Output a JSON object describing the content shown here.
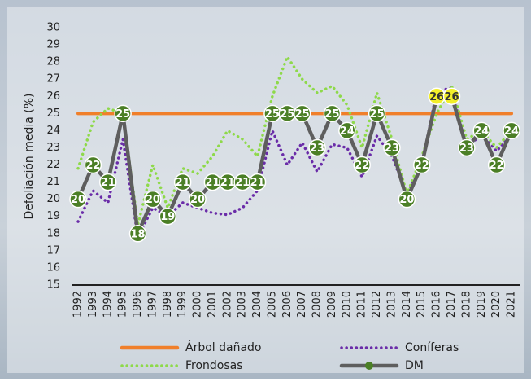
{
  "chart_data": {
    "type": "line",
    "y_label": "Defoliación media (%)",
    "categories": [
      "1992",
      "1993",
      "1994",
      "1995",
      "1996",
      "1997",
      "1998",
      "1999",
      "2000",
      "2001",
      "2002",
      "2003",
      "2004",
      "2005",
      "2006",
      "2007",
      "2008",
      "2009",
      "2010",
      "2011",
      "2012",
      "2013",
      "2014",
      "2015",
      "2016",
      "2017",
      "2018",
      "2019",
      "2020",
      "2021"
    ],
    "ylim": [
      15,
      30
    ],
    "yticks": [
      15,
      16,
      17,
      18,
      19,
      20,
      21,
      22,
      23,
      24,
      25,
      26,
      27,
      28,
      29,
      30
    ],
    "series": [
      {
        "name": "Árbol dañado",
        "color": "#f07f2a",
        "style": "solid",
        "values": [
          25,
          25,
          25,
          25,
          25,
          25,
          25,
          25,
          25,
          25,
          25,
          25,
          25,
          25,
          25,
          25,
          25,
          25,
          25,
          25,
          25,
          25,
          25,
          25,
          25,
          25,
          25,
          25,
          25,
          25
        ]
      },
      {
        "name": "Coníferas",
        "color": "#6a2ca8",
        "style": "dotted",
        "values": [
          18.7,
          20.5,
          19.8,
          23.5,
          17.8,
          19.5,
          19,
          19.8,
          19.5,
          19.2,
          19.1,
          19.5,
          20.5,
          24,
          22,
          23.3,
          21.6,
          23.2,
          23,
          21.3,
          23.7,
          22.5,
          20.3,
          22,
          26.3,
          26.5,
          23,
          23.8,
          22.8,
          23.8
        ]
      },
      {
        "name": "Frondosas",
        "color": "#8ed94a",
        "style": "dotted",
        "values": [
          21.8,
          24.5,
          25.3,
          25,
          18.5,
          22,
          19.5,
          21.8,
          21.5,
          22.5,
          24,
          23.5,
          22.5,
          26,
          28.3,
          27,
          26.2,
          26.6,
          25.5,
          23,
          26.2,
          23.5,
          20.3,
          22.5,
          25,
          26.6,
          23.5,
          24,
          23,
          24
        ]
      },
      {
        "name": "DM",
        "color": "#5e5e5e",
        "style": "markers",
        "marker_color": "#4b7f26",
        "point_colors": [
          "#4b7f26",
          "#4b7f26",
          "#4b7f26",
          "#4b7f26",
          "#4b7f26",
          "#4b7f26",
          "#4b7f26",
          "#4b7f26",
          "#4b7f26",
          "#4b7f26",
          "#4b7f26",
          "#4b7f26",
          "#4b7f26",
          "#4b7f26",
          "#4b7f26",
          "#4b7f26",
          "#4b7f26",
          "#4b7f26",
          "#4b7f26",
          "#4b7f26",
          "#4b7f26",
          "#4b7f26",
          "#4b7f26",
          "#4b7f26",
          "#f2ee2a",
          "#f2ee2a",
          "#4b7f26",
          "#4b7f26",
          "#4b7f26",
          "#4b7f26"
        ],
        "values": [
          20,
          22,
          21,
          25,
          18,
          20,
          19,
          21,
          20,
          21,
          21,
          21,
          21,
          25,
          25,
          25,
          23,
          25,
          24,
          22,
          25,
          23,
          20,
          22,
          26,
          26,
          23,
          24,
          22,
          24
        ]
      }
    ]
  }
}
